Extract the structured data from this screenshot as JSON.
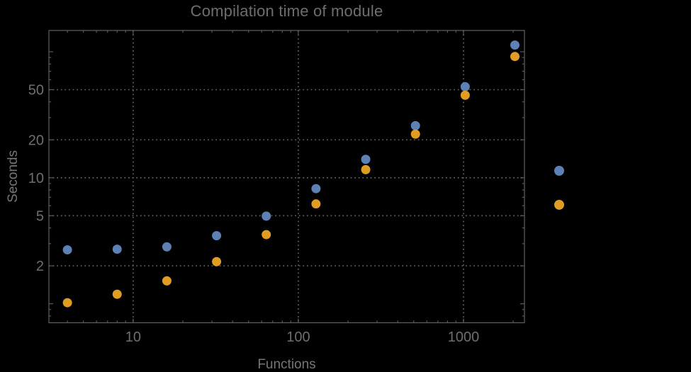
{
  "chart_data": {
    "type": "scatter",
    "title": "Compilation time of module",
    "xlabel": "Functions",
    "ylabel": "Seconds",
    "xscale": "log",
    "yscale": "log",
    "xlim": [
      3.09,
      2340
    ],
    "ylim": [
      0.707,
      147.5
    ],
    "x": [
      4,
      8,
      16,
      32,
      64,
      128,
      256,
      512,
      1024,
      2048
    ],
    "series": [
      {
        "name": "series-1-blue",
        "color": "#5e81b5",
        "values": [
          2.68,
          2.71,
          2.83,
          3.47,
          4.96,
          8.2,
          14.0,
          25.9,
          52.8,
          113
        ]
      },
      {
        "name": "series-2-orange",
        "color": "#e19c24",
        "values": [
          1.02,
          1.19,
          1.52,
          2.16,
          3.54,
          6.2,
          11.6,
          22.2,
          45.2,
          91.7
        ]
      }
    ],
    "axes": {
      "x_tick_labels": [
        "10",
        "100",
        "1000"
      ],
      "x_tick_values": [
        10,
        100,
        1000
      ],
      "x_minor_ticks": [
        4,
        5,
        6,
        7,
        8,
        9,
        20,
        30,
        40,
        50,
        60,
        70,
        80,
        90,
        200,
        300,
        400,
        500,
        600,
        700,
        800,
        900,
        2000
      ],
      "y_tick_labels": [
        "2",
        "5",
        "10",
        "20",
        "50"
      ],
      "y_tick_values": [
        2,
        5,
        10,
        20,
        50
      ],
      "y_major_unlabeled_ticks": [
        1,
        100
      ],
      "y_minor_ticks": [
        0.8,
        0.9,
        3,
        4,
        6,
        7,
        8,
        9,
        30,
        40,
        60,
        70,
        80,
        90
      ],
      "x_gridlines": [
        10,
        100,
        1000
      ],
      "y_gridlines": [
        2,
        5,
        10,
        20,
        50
      ],
      "grid_style": "dotted",
      "legend_position": "right-outside"
    },
    "legend": {
      "markers": [
        {
          "series": "series-1-blue",
          "color": "#5e81b5"
        },
        {
          "series": "series-2-orange",
          "color": "#e19c24"
        }
      ]
    },
    "colors": {
      "background": "#000000",
      "frame": "#606060",
      "gridline": "#636363",
      "tick_label": "#6e6e6e",
      "title": "#6e6e6e",
      "axis_label": "#767676",
      "series_blue": "#5e81b5",
      "series_orange": "#e19c24"
    },
    "marker_radius": 6.5
  }
}
